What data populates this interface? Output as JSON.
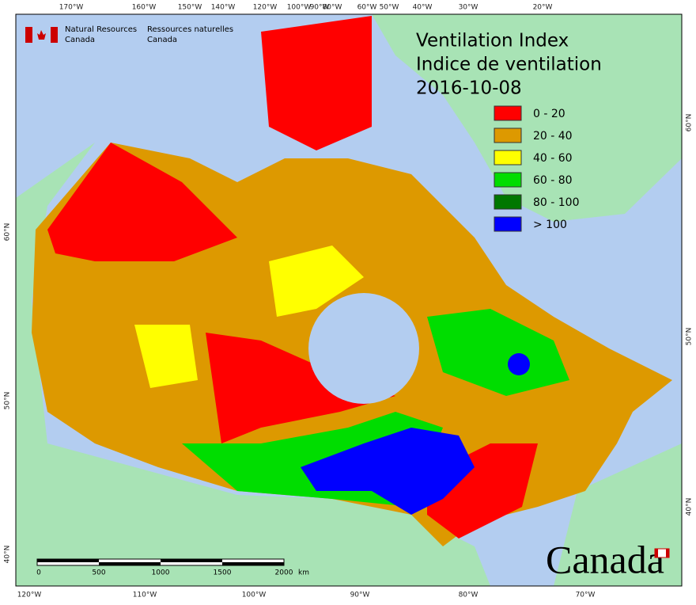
{
  "agency": {
    "en": [
      "Natural Resources",
      "Canada"
    ],
    "fr": [
      "Ressources naturelles",
      "Canada"
    ]
  },
  "title": [
    "Ventilation Index",
    "Indice de ventilation"
  ],
  "date": "2016-10-08",
  "legend": [
    {
      "label": "0 - 20",
      "color": "#ff0000"
    },
    {
      "label": "20 - 40",
      "color": "#dd9900"
    },
    {
      "label": "40 - 60",
      "color": "#ffff00"
    },
    {
      "label": "60 - 80",
      "color": "#00dd00"
    },
    {
      "label": "80 - 100",
      "color": "#007700"
    },
    {
      "label": "> 100",
      "color": "#0000ff"
    }
  ],
  "graticule": {
    "top": [
      "170°W",
      "160°W",
      "150°W",
      "140°W",
      "120°W",
      "100°W",
      "90°W",
      "80°W",
      "60°W",
      "50°W",
      "40°W",
      "30°W",
      "20°W"
    ],
    "bottom": [
      "120°W",
      "110°W",
      "100°W",
      "90°W",
      "80°W",
      "70°W"
    ],
    "left": [
      "60°N",
      "50°N",
      "40°N"
    ],
    "right": [
      "60°N",
      "50°N",
      "40°N"
    ]
  },
  "scale": {
    "ticks": [
      "0",
      "500",
      "1000",
      "1500",
      "2000"
    ],
    "unit": "km"
  },
  "wordmark": "Canada"
}
